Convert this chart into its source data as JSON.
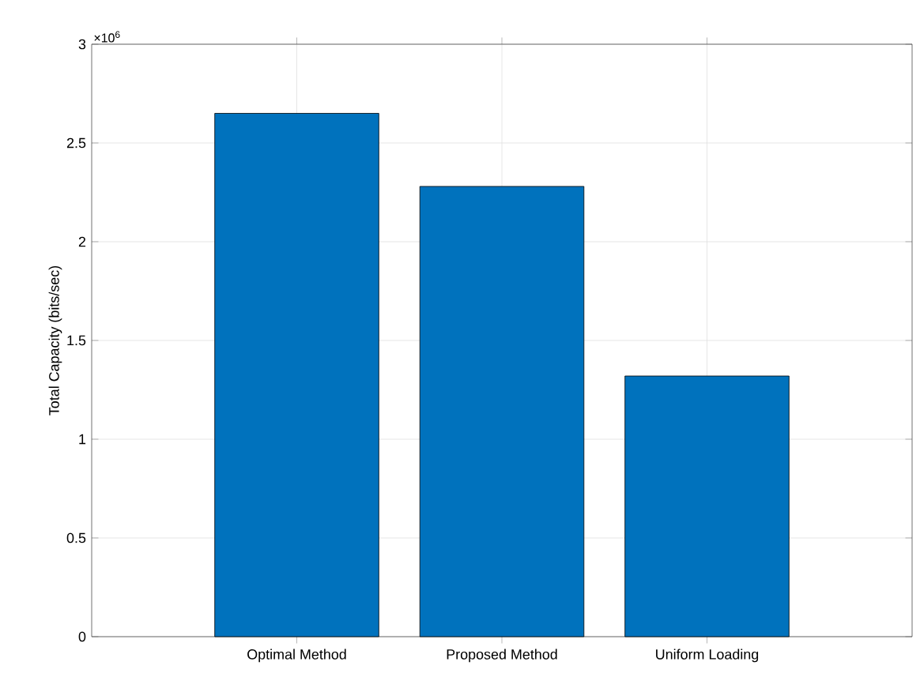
{
  "chart_data": {
    "type": "bar",
    "ylabel": "Total Capacity (bits/sec)",
    "categories": [
      "Optimal Method",
      "Proposed Method",
      "Uniform Loading"
    ],
    "values": [
      2.65,
      2.28,
      1.32
    ],
    "color": "#0072bd",
    "ylim": [
      0,
      3
    ],
    "yticks": [
      0,
      0.5,
      1,
      1.5,
      2,
      2.5,
      3
    ],
    "annotations": [
      "×10$^{6}$"
    ],
    "grid": true
  }
}
